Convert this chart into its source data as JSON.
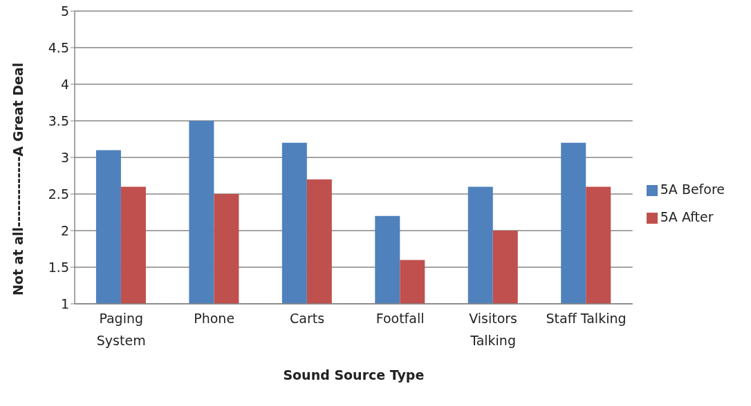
{
  "chart_data": {
    "type": "bar",
    "xlabel": "Sound Source Type",
    "ylabel": "Not at all-------------A Great Deal",
    "categories": [
      "Paging\nSystem",
      "Phone",
      "Carts",
      "Footfall",
      "Visitors\nTalking",
      "Staff Talking"
    ],
    "series": [
      {
        "name": "5A Before",
        "color": "#4f81bd",
        "values": [
          3.1,
          3.5,
          3.2,
          2.2,
          2.6,
          3.2
        ]
      },
      {
        "name": "5A After",
        "color": "#c0504d",
        "values": [
          2.6,
          2.5,
          2.7,
          1.6,
          2.0,
          2.6
        ]
      }
    ],
    "ylim": [
      1,
      5
    ],
    "yticks": [
      1,
      1.5,
      2,
      2.5,
      3,
      3.5,
      4,
      4.5,
      5
    ],
    "grid": "y",
    "legend": "right"
  }
}
